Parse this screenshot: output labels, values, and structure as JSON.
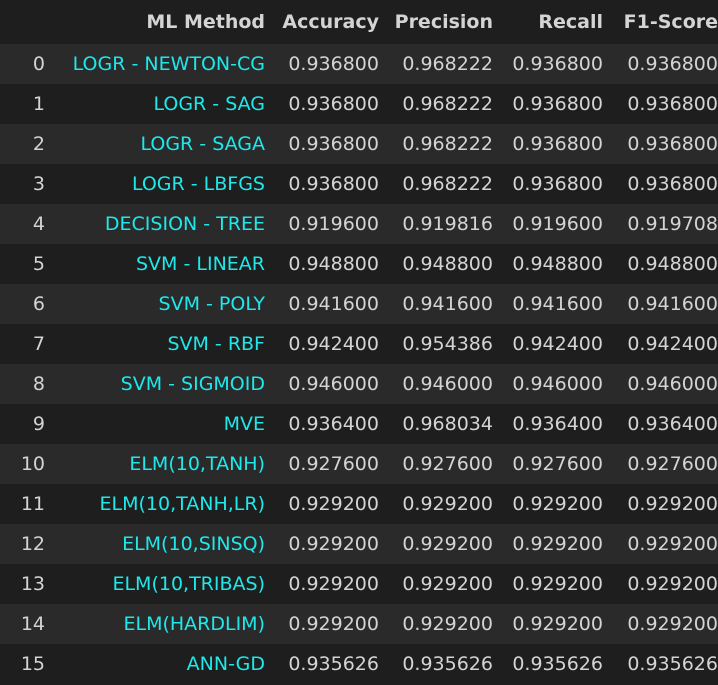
{
  "table": {
    "columns": [
      "",
      "ML Method",
      "Accuracy",
      "Precision",
      "Recall",
      "F1-Score"
    ],
    "rows": [
      {
        "index": "0",
        "method": "LOGR - NEWTON-CG",
        "accuracy": "0.936800",
        "precision": "0.968222",
        "recall": "0.936800",
        "f1": "0.936800"
      },
      {
        "index": "1",
        "method": "LOGR - SAG",
        "accuracy": "0.936800",
        "precision": "0.968222",
        "recall": "0.936800",
        "f1": "0.936800"
      },
      {
        "index": "2",
        "method": "LOGR - SAGA",
        "accuracy": "0.936800",
        "precision": "0.968222",
        "recall": "0.936800",
        "f1": "0.936800"
      },
      {
        "index": "3",
        "method": "LOGR - LBFGS",
        "accuracy": "0.936800",
        "precision": "0.968222",
        "recall": "0.936800",
        "f1": "0.936800"
      },
      {
        "index": "4",
        "method": "DECISION - TREE",
        "accuracy": "0.919600",
        "precision": "0.919816",
        "recall": "0.919600",
        "f1": "0.919708"
      },
      {
        "index": "5",
        "method": "SVM - LINEAR",
        "accuracy": "0.948800",
        "precision": "0.948800",
        "recall": "0.948800",
        "f1": "0.948800"
      },
      {
        "index": "6",
        "method": "SVM - POLY",
        "accuracy": "0.941600",
        "precision": "0.941600",
        "recall": "0.941600",
        "f1": "0.941600"
      },
      {
        "index": "7",
        "method": "SVM - RBF",
        "accuracy": "0.942400",
        "precision": "0.954386",
        "recall": "0.942400",
        "f1": "0.942400"
      },
      {
        "index": "8",
        "method": "SVM - SIGMOID",
        "accuracy": "0.946000",
        "precision": "0.946000",
        "recall": "0.946000",
        "f1": "0.946000"
      },
      {
        "index": "9",
        "method": "MVE",
        "accuracy": "0.936400",
        "precision": "0.968034",
        "recall": "0.936400",
        "f1": "0.936400"
      },
      {
        "index": "10",
        "method": "ELM(10,TANH)",
        "accuracy": "0.927600",
        "precision": "0.927600",
        "recall": "0.927600",
        "f1": "0.927600"
      },
      {
        "index": "11",
        "method": "ELM(10,TANH,LR)",
        "accuracy": "0.929200",
        "precision": "0.929200",
        "recall": "0.929200",
        "f1": "0.929200"
      },
      {
        "index": "12",
        "method": "ELM(10,SINSQ)",
        "accuracy": "0.929200",
        "precision": "0.929200",
        "recall": "0.929200",
        "f1": "0.929200"
      },
      {
        "index": "13",
        "method": "ELM(10,TRIBAS)",
        "accuracy": "0.929200",
        "precision": "0.929200",
        "recall": "0.929200",
        "f1": "0.929200"
      },
      {
        "index": "14",
        "method": "ELM(HARDLIM)",
        "accuracy": "0.929200",
        "precision": "0.929200",
        "recall": "0.929200",
        "f1": "0.929200"
      },
      {
        "index": "15",
        "method": "ANN-GD",
        "accuracy": "0.935626",
        "precision": "0.935626",
        "recall": "0.935626",
        "f1": "0.935626"
      }
    ]
  },
  "colors": {
    "background": "#1e1e1e",
    "row_alt": "#2a2a2a",
    "text": "#d4d4d4",
    "method_text": "#1ee8ea"
  }
}
